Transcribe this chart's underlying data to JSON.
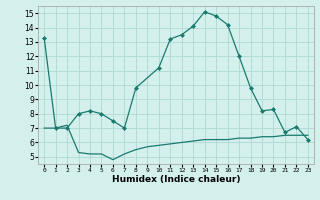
{
  "line1_x": [
    0,
    1,
    2,
    3,
    4,
    5,
    6,
    7,
    8,
    10,
    11,
    12,
    13,
    14,
    15,
    16,
    17,
    18,
    19,
    20,
    21,
    22,
    23
  ],
  "line1_y": [
    13.3,
    7.0,
    7.0,
    8.0,
    8.2,
    8.0,
    7.5,
    7.0,
    9.8,
    11.2,
    13.2,
    13.5,
    14.1,
    15.1,
    14.8,
    14.2,
    12.0,
    9.8,
    8.2,
    8.3,
    6.7,
    7.1,
    6.2
  ],
  "line2_x": [
    0,
    1,
    2,
    3,
    4,
    5,
    6,
    7,
    8,
    9,
    10,
    11,
    12,
    13,
    14,
    15,
    16,
    17,
    18,
    19,
    20,
    21,
    22,
    23
  ],
  "line2_y": [
    7.0,
    7.0,
    7.2,
    5.3,
    5.2,
    5.2,
    4.8,
    5.2,
    5.5,
    5.7,
    5.8,
    5.9,
    6.0,
    6.1,
    6.2,
    6.2,
    6.2,
    6.3,
    6.3,
    6.4,
    6.4,
    6.5,
    6.5,
    6.5
  ],
  "line_color": "#1a7a6e",
  "marker": "D",
  "markersize": 2.0,
  "linewidth": 0.9,
  "bg_color": "#d4f0ec",
  "grid_color": "#b0d8d4",
  "xlabel": "Humidex (Indice chaleur)",
  "xlabel_fontsize": 6.5,
  "xlim": [
    -0.5,
    23.5
  ],
  "ylim": [
    4.5,
    15.5
  ],
  "yticks": [
    5,
    6,
    7,
    8,
    9,
    10,
    11,
    12,
    13,
    14,
    15
  ],
  "xticks": [
    0,
    1,
    2,
    3,
    4,
    5,
    6,
    7,
    8,
    9,
    10,
    11,
    12,
    13,
    14,
    15,
    16,
    17,
    18,
    19,
    20,
    21,
    22,
    23
  ],
  "xtick_labels": [
    "0",
    "1",
    "2",
    "3",
    "4",
    "5",
    "6",
    "7",
    "8",
    "9",
    "10",
    "11",
    "12",
    "13",
    "14",
    "15",
    "16",
    "17",
    "18",
    "19",
    "20",
    "21",
    "22",
    "23"
  ]
}
